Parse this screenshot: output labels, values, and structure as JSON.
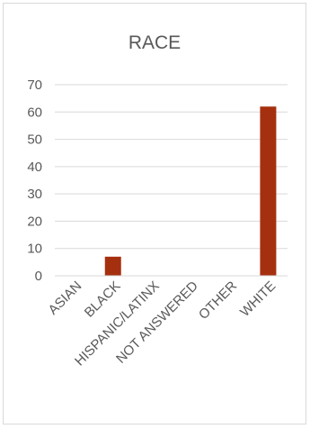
{
  "chart_data": {
    "type": "bar",
    "title": "RACE",
    "categories": [
      "ASIAN",
      "BLACK",
      "HISPANIC/LATINX",
      "NOT ANSWERED",
      "OTHER",
      "WHITE"
    ],
    "values": [
      0,
      7,
      0,
      0,
      0,
      62
    ],
    "ylim": [
      0,
      70
    ],
    "yticks": [
      0,
      10,
      20,
      30,
      40,
      50,
      60,
      70
    ],
    "xlabel": "",
    "ylabel": "",
    "grid": true,
    "legend": "none",
    "colors": {
      "bar": "#a5300f",
      "grid": "#d9d9d9",
      "text": "#595959"
    }
  }
}
